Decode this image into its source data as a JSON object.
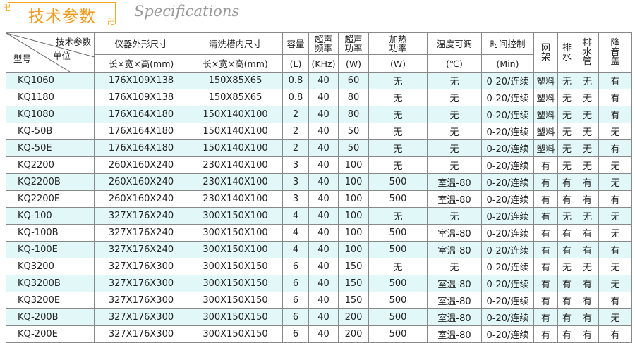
{
  "title": {
    "cn": "技术参数",
    "en": "Specifications"
  },
  "colors": {
    "accent": "#f29a1a",
    "row_alt": "#e2f8f8"
  },
  "header": {
    "corner_param": "技术参数",
    "corner_unit": "单位",
    "corner_model": "型号",
    "columns": [
      {
        "name": "仪器外形尺寸",
        "unit": "长×宽×高(mm)"
      },
      {
        "name": "清洗槽内尺寸",
        "unit": "长×宽×高(mm)"
      },
      {
        "name": "容量",
        "unit": "(L)"
      },
      {
        "name": "超声频率",
        "unit": "(KHz)"
      },
      {
        "name": "超声功率",
        "unit": "(W)"
      },
      {
        "name": "加热功率",
        "unit": "(W)"
      },
      {
        "name": "温度可调",
        "unit": "(℃)"
      },
      {
        "name": "时间控制",
        "unit": "(Min)"
      },
      {
        "name": "网架"
      },
      {
        "name": "排水"
      },
      {
        "name": "排水管"
      },
      {
        "name": "降音盖"
      }
    ]
  },
  "rows": [
    [
      "KQ1060",
      "176X109X138",
      "150X85X65",
      "0.8",
      "40",
      "60",
      "无",
      "无",
      "0-20/连续",
      "塑料",
      "无",
      "无",
      "有"
    ],
    [
      "KQ1180",
      "176X109X138",
      "150X85X65",
      "0.8",
      "40",
      "80",
      "无",
      "无",
      "0-20/连续",
      "塑料",
      "无",
      "无",
      "有"
    ],
    [
      "KQ1080",
      "176X164X180",
      "150X140X100",
      "2",
      "40",
      "80",
      "无",
      "无",
      "0-20/连续",
      "塑料",
      "无",
      "无",
      "有"
    ],
    [
      "KQ-50B",
      "176X164X180",
      "150X140X100",
      "2",
      "40",
      "50",
      "无",
      "无",
      "0-20/连续",
      "塑料",
      "无",
      "无",
      "无"
    ],
    [
      "KQ-50E",
      "176X164X180",
      "150X140X100",
      "2",
      "40",
      "50",
      "无",
      "无",
      "0-20/连续",
      "塑料",
      "无",
      "无",
      "有"
    ],
    [
      "KQ2200",
      "260X160X240",
      "230X140X100",
      "3",
      "40",
      "100",
      "无",
      "无",
      "0-20/连续",
      "有",
      "无",
      "无",
      "无"
    ],
    [
      "KQ2200B",
      "260X160X240",
      "230X140X100",
      "3",
      "40",
      "100",
      "500",
      "室温-80",
      "0-20/连续",
      "有",
      "有",
      "有",
      "无"
    ],
    [
      "KQ2200E",
      "260X160X240",
      "230X140X100",
      "3",
      "40",
      "100",
      "500",
      "室温-80",
      "0-20/连续",
      "有",
      "有",
      "有",
      "有"
    ],
    [
      "KQ-100",
      "327X176X240",
      "300X150X100",
      "4",
      "40",
      "100",
      "无",
      "无",
      "0-20/连续",
      "有",
      "无",
      "无",
      "无"
    ],
    [
      "KQ-100B",
      "327X176X240",
      "300X150X100",
      "4",
      "40",
      "100",
      "500",
      "室温-80",
      "0-20/连续",
      "有",
      "有",
      "有",
      "无"
    ],
    [
      "KQ-100E",
      "327X176X240",
      "300X150X100",
      "4",
      "40",
      "100",
      "500",
      "室温-80",
      "0-20/连续",
      "有",
      "有",
      "有",
      "有"
    ],
    [
      "KQ3200",
      "327X176X300",
      "300X150X150",
      "6",
      "40",
      "150",
      "无",
      "无",
      "0-20/连续",
      "有",
      "无",
      "无",
      "无"
    ],
    [
      "KQ3200B",
      "327X176X300",
      "300X150X150",
      "6",
      "40",
      "150",
      "500",
      "室温-80",
      "0-20/连续",
      "有",
      "有",
      "有",
      "无"
    ],
    [
      "KQ3200E",
      "327X176X300",
      "300X150X150",
      "6",
      "40",
      "150",
      "500",
      "室温-80",
      "0-20/连续",
      "有",
      "有",
      "有",
      "有"
    ],
    [
      "KQ-200B",
      "327X176X300",
      "300X150X150",
      "6",
      "40",
      "200",
      "500",
      "室温-80",
      "0-20/连续",
      "有",
      "有",
      "有",
      "无"
    ],
    [
      "KQ-200E",
      "327X176X300",
      "300X150X150",
      "6",
      "40",
      "200",
      "500",
      "室温-80",
      "0-20/连续",
      "有",
      "有",
      "有",
      "有"
    ]
  ]
}
